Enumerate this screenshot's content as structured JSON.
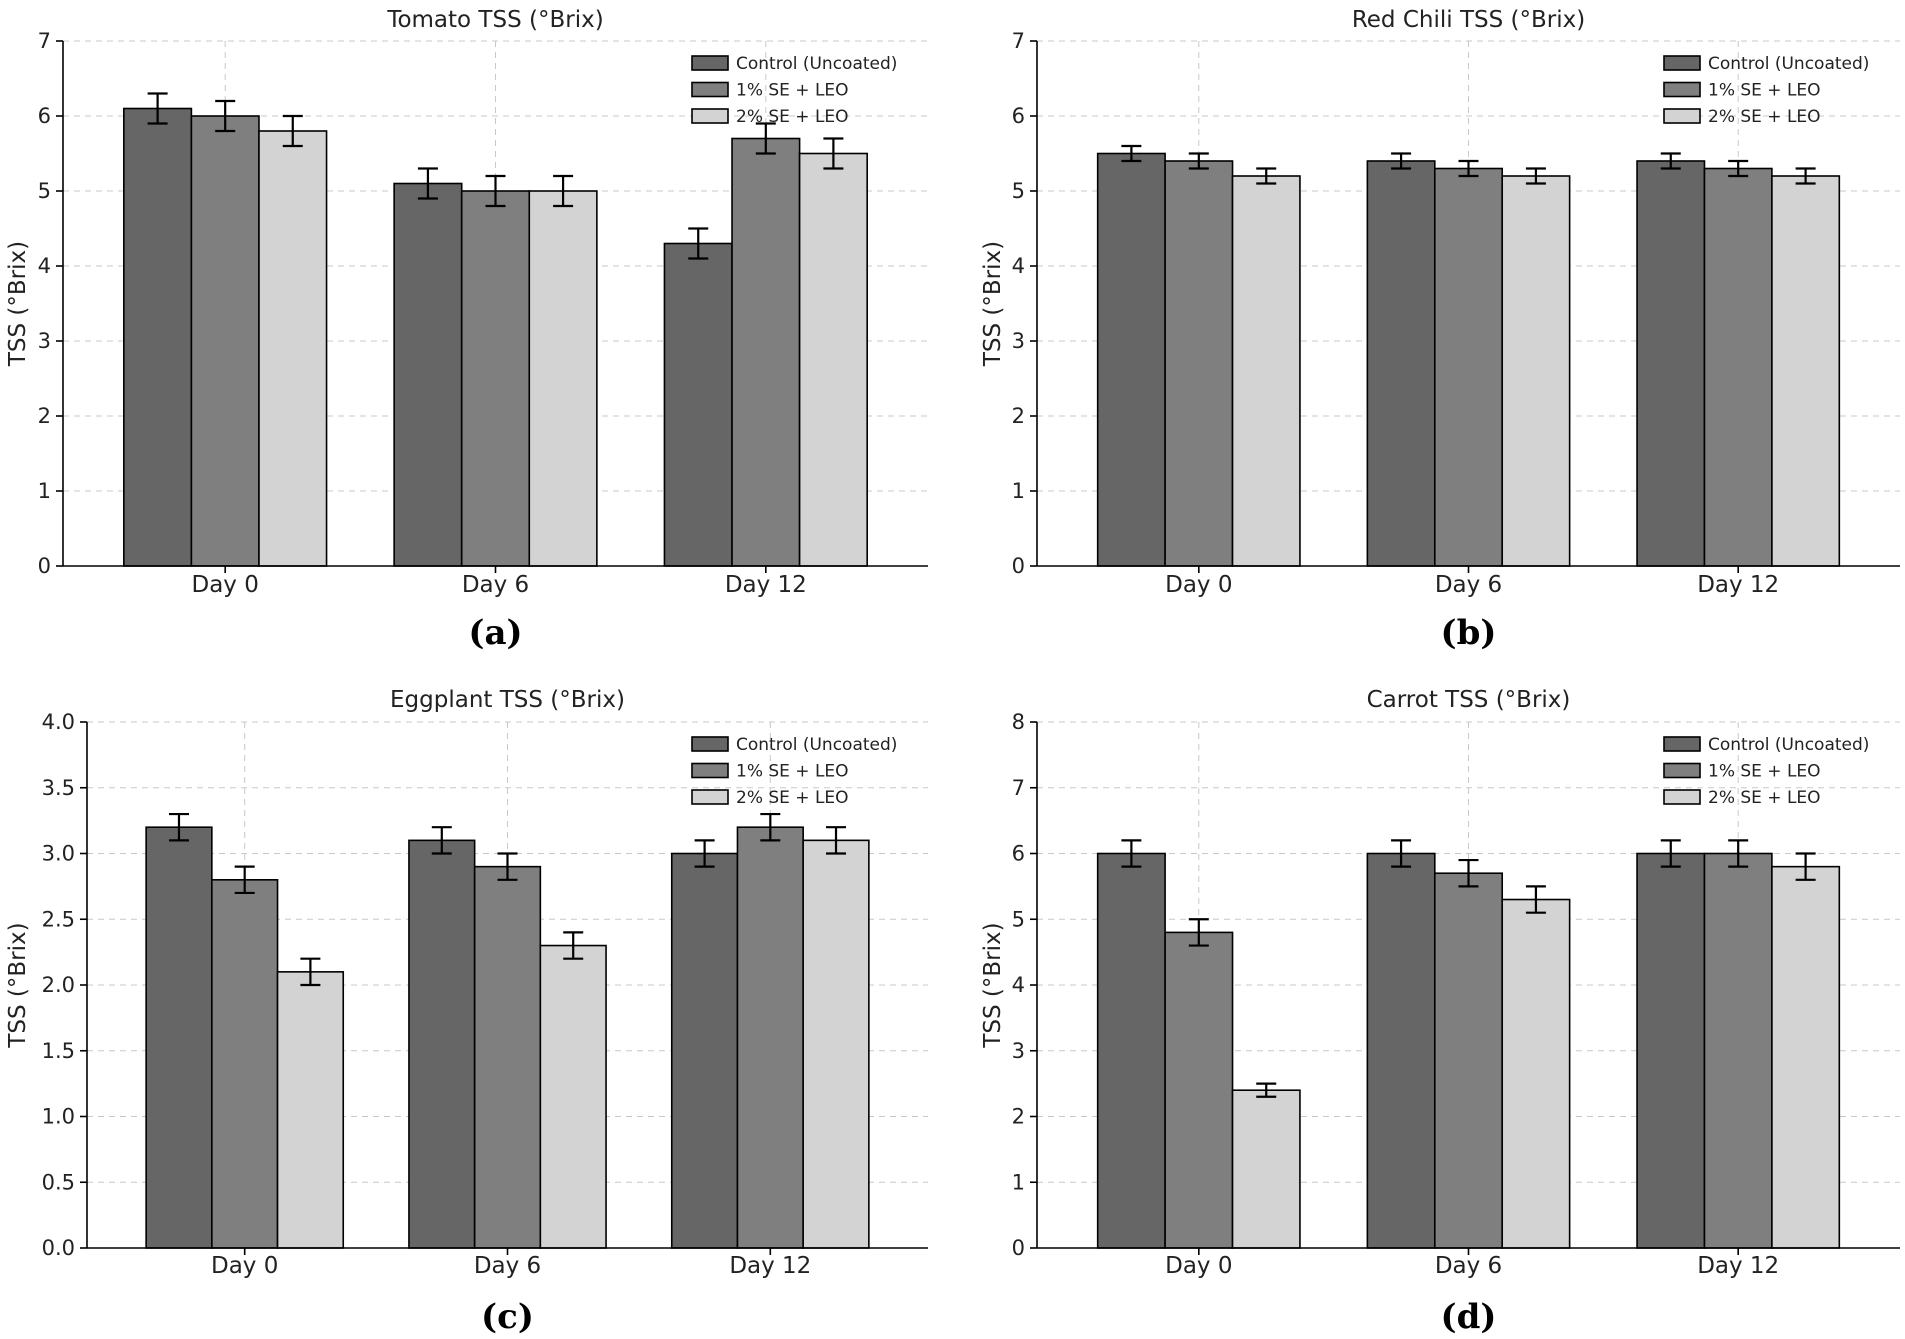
{
  "colors": {
    "control": "#666666",
    "se1": "#7f7f7f",
    "se2": "#d3d3d3"
  },
  "chart_data": [
    {
      "type": "bar",
      "title": "Tomato TSS (°Brix)",
      "panel_label": "(a)",
      "ylabel": "TSS (°Brix)",
      "xlabel": "",
      "categories": [
        "Day 0",
        "Day 6",
        "Day 12"
      ],
      "ylim": [
        0,
        7
      ],
      "yticks": [
        "0",
        "1",
        "2",
        "3",
        "4",
        "5",
        "6",
        "7"
      ],
      "grid": true,
      "legend": "top-right",
      "series": [
        {
          "name": "Control (Uncoated)",
          "values": [
            6.1,
            5.1,
            4.3
          ],
          "errors": [
            0.2,
            0.2,
            0.2
          ]
        },
        {
          "name": "1% SE + LEO",
          "values": [
            6.0,
            5.0,
            5.7
          ],
          "errors": [
            0.2,
            0.2,
            0.2
          ]
        },
        {
          "name": "2% SE + LEO",
          "values": [
            5.8,
            5.0,
            5.5
          ],
          "errors": [
            0.2,
            0.2,
            0.2
          ]
        }
      ]
    },
    {
      "type": "bar",
      "title": "Red Chili TSS (°Brix)",
      "panel_label": "(b)",
      "ylabel": "TSS (°Brix)",
      "xlabel": "",
      "categories": [
        "Day 0",
        "Day 6",
        "Day 12"
      ],
      "ylim": [
        0,
        7
      ],
      "yticks": [
        "0",
        "1",
        "2",
        "3",
        "4",
        "5",
        "6",
        "7"
      ],
      "grid": true,
      "legend": "top-right",
      "series": [
        {
          "name": "Control (Uncoated)",
          "values": [
            5.5,
            5.4,
            5.4
          ],
          "errors": [
            0.1,
            0.1,
            0.1
          ]
        },
        {
          "name": "1% SE + LEO",
          "values": [
            5.4,
            5.3,
            5.3
          ],
          "errors": [
            0.1,
            0.1,
            0.1
          ]
        },
        {
          "name": "2% SE + LEO",
          "values": [
            5.2,
            5.2,
            5.2
          ],
          "errors": [
            0.1,
            0.1,
            0.1
          ]
        }
      ]
    },
    {
      "type": "bar",
      "title": "Eggplant TSS (°Brix)",
      "panel_label": "(c)",
      "ylabel": "TSS (°Brix)",
      "xlabel": "",
      "categories": [
        "Day 0",
        "Day 6",
        "Day 12"
      ],
      "ylim": [
        0,
        4
      ],
      "yticks": [
        "0.0",
        "0.5",
        "1.0",
        "1.5",
        "2.0",
        "2.5",
        "3.0",
        "3.5",
        "4.0"
      ],
      "grid": true,
      "legend": "top-right",
      "series": [
        {
          "name": "Control (Uncoated)",
          "values": [
            3.2,
            3.1,
            3.0
          ],
          "errors": [
            0.1,
            0.1,
            0.1
          ]
        },
        {
          "name": "1% SE + LEO",
          "values": [
            2.8,
            2.9,
            3.2
          ],
          "errors": [
            0.1,
            0.1,
            0.1
          ]
        },
        {
          "name": "2% SE + LEO",
          "values": [
            2.1,
            2.3,
            3.1
          ],
          "errors": [
            0.1,
            0.1,
            0.1
          ]
        }
      ]
    },
    {
      "type": "bar",
      "title": "Carrot TSS (°Brix)",
      "panel_label": "(d)",
      "ylabel": "TSS (°Brix)",
      "xlabel": "",
      "categories": [
        "Day 0",
        "Day 6",
        "Day 12"
      ],
      "ylim": [
        0,
        8
      ],
      "yticks": [
        "0",
        "1",
        "2",
        "3",
        "4",
        "5",
        "6",
        "7",
        "8"
      ],
      "grid": true,
      "legend": "top-right",
      "series": [
        {
          "name": "Control (Uncoated)",
          "values": [
            6.0,
            6.0,
            6.0
          ],
          "errors": [
            0.2,
            0.2,
            0.2
          ]
        },
        {
          "name": "1% SE + LEO",
          "values": [
            4.8,
            5.7,
            6.0
          ],
          "errors": [
            0.2,
            0.2,
            0.2
          ]
        },
        {
          "name": "2% SE + LEO",
          "values": [
            2.4,
            5.3,
            5.8
          ],
          "errors": [
            0.1,
            0.2,
            0.2
          ]
        }
      ]
    }
  ]
}
